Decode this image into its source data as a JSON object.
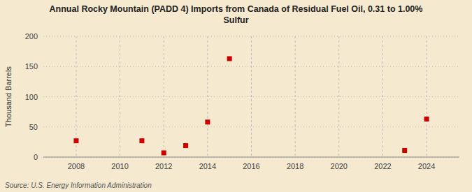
{
  "chart_data": {
    "type": "scatter",
    "title": "Annual Rocky Mountain (PADD 4) Imports from Canada of Residual Fuel Oil, 0.31 to 1.00%\nSulfur",
    "y_label": "Thousand Barrels",
    "annotations": [
      "Source: U.S. Energy Information Administration"
    ],
    "x": [
      2008,
      2011,
      2012,
      2013,
      2014,
      2015,
      2023,
      2024
    ],
    "values": [
      27,
      27,
      7,
      19,
      58,
      163,
      11,
      63
    ],
    "color": "#cc0000",
    "marker": "square",
    "xlim": [
      2006.5,
      2025.5
    ],
    "ylim": [
      0,
      200
    ],
    "xticks": [
      2008,
      2010,
      2012,
      2014,
      2016,
      2018,
      2020,
      2022,
      2024
    ],
    "yticks": [
      0,
      50,
      100,
      150,
      200
    ],
    "grid": true
  }
}
